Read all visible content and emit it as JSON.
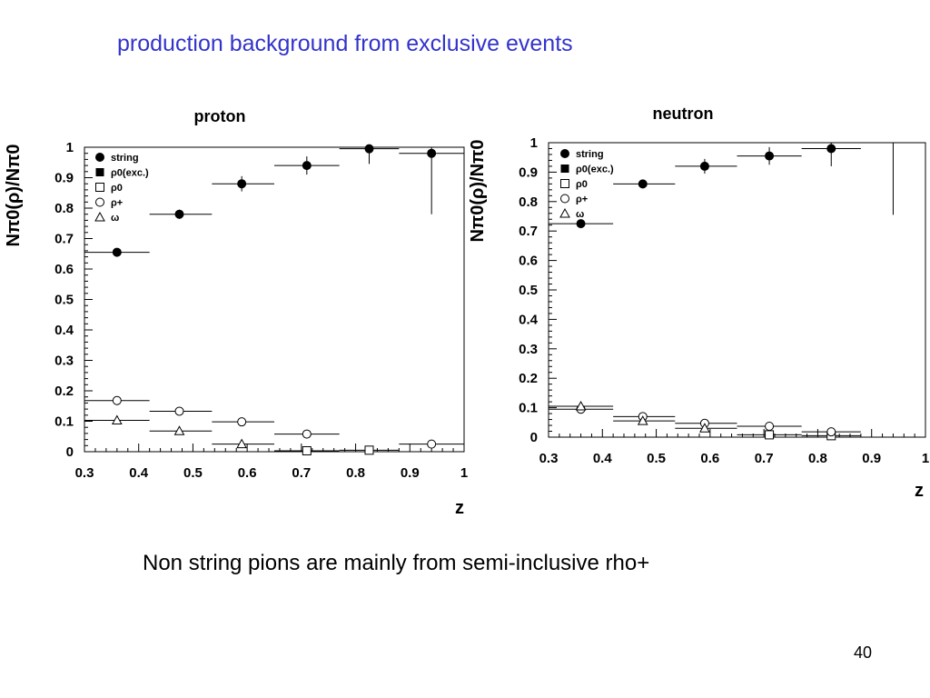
{
  "slide": {
    "title": "production background from exclusive events",
    "caption": "Non string pions are mainly from semi-inclusive rho+",
    "page_number": "40",
    "title_color": "#3333cc"
  },
  "chart_data": [
    {
      "type": "scatter",
      "title": "proton",
      "xlabel": "z",
      "ylabel": "Nπ0(ρ)/Nπ0",
      "xlim": [
        0.3,
        1.0
      ],
      "ylim": [
        0,
        1.0
      ],
      "x_ticks": [
        "0.3",
        "0.4",
        "0.5",
        "0.6",
        "0.7",
        "0.8",
        "0.9",
        "1"
      ],
      "y_ticks": [
        "0",
        "0.1",
        "0.2",
        "0.3",
        "0.4",
        "0.5",
        "0.6",
        "0.7",
        "0.8",
        "0.9",
        "1"
      ],
      "legend_position": "top-left",
      "grid": false,
      "series": [
        {
          "name": "string",
          "marker": "filled-circle",
          "points": [
            {
              "x": 0.36,
              "y": 0.655,
              "xlo": 0.3,
              "xhi": 0.42,
              "ylo": 0.655,
              "yhi": 0.655
            },
            {
              "x": 0.475,
              "y": 0.78,
              "xlo": 0.42,
              "xhi": 0.535,
              "ylo": 0.765,
              "yhi": 0.795
            },
            {
              "x": 0.59,
              "y": 0.88,
              "xlo": 0.535,
              "xhi": 0.65,
              "ylo": 0.855,
              "yhi": 0.905
            },
            {
              "x": 0.71,
              "y": 0.94,
              "xlo": 0.65,
              "xhi": 0.77,
              "ylo": 0.91,
              "yhi": 0.97
            },
            {
              "x": 0.825,
              "y": 0.995,
              "xlo": 0.77,
              "xhi": 0.88,
              "ylo": 0.945,
              "yhi": 1.0
            },
            {
              "x": 0.94,
              "y": 0.98,
              "xlo": 0.88,
              "xhi": 1.0,
              "ylo": 0.78,
              "yhi": 1.0
            }
          ]
        },
        {
          "name": "ρ0(exc.)",
          "marker": "filled-square",
          "points": []
        },
        {
          "name": "ρ0",
          "marker": "open-square",
          "points": [
            {
              "x": 0.71,
              "y": 0.003,
              "xlo": 0.65,
              "xhi": 0.77,
              "ylo": 0.003,
              "yhi": 0.003
            },
            {
              "x": 0.825,
              "y": 0.005,
              "xlo": 0.77,
              "xhi": 0.88,
              "ylo": 0.005,
              "yhi": 0.005
            }
          ]
        },
        {
          "name": "ρ+",
          "marker": "open-circle",
          "points": [
            {
              "x": 0.36,
              "y": 0.168,
              "xlo": 0.3,
              "xhi": 0.42,
              "ylo": 0.168,
              "yhi": 0.168
            },
            {
              "x": 0.475,
              "y": 0.133,
              "xlo": 0.42,
              "xhi": 0.535,
              "ylo": 0.133,
              "yhi": 0.133
            },
            {
              "x": 0.59,
              "y": 0.098,
              "xlo": 0.535,
              "xhi": 0.65,
              "ylo": 0.098,
              "yhi": 0.098
            },
            {
              "x": 0.71,
              "y": 0.058,
              "xlo": 0.65,
              "xhi": 0.77,
              "ylo": 0.058,
              "yhi": 0.058
            },
            {
              "x": 0.94,
              "y": 0.025,
              "xlo": 0.88,
              "xhi": 1.0,
              "ylo": 0.025,
              "yhi": 0.025
            }
          ]
        },
        {
          "name": "ω",
          "marker": "open-triangle",
          "points": [
            {
              "x": 0.36,
              "y": 0.103,
              "xlo": 0.3,
              "xhi": 0.42,
              "ylo": 0.103,
              "yhi": 0.103
            },
            {
              "x": 0.475,
              "y": 0.068,
              "xlo": 0.42,
              "xhi": 0.535,
              "ylo": 0.068,
              "yhi": 0.068
            },
            {
              "x": 0.59,
              "y": 0.025,
              "xlo": 0.535,
              "xhi": 0.65,
              "ylo": 0.025,
              "yhi": 0.025
            }
          ]
        }
      ]
    },
    {
      "type": "scatter",
      "title": "neutron",
      "xlabel": "z",
      "ylabel": "Nπ0(ρ)/Nπ0",
      "xlim": [
        0.3,
        1.0
      ],
      "ylim": [
        0,
        1.0
      ],
      "x_ticks": [
        "0.3",
        "0.4",
        "0.5",
        "0.6",
        "0.7",
        "0.8",
        "0.9",
        "1"
      ],
      "y_ticks": [
        "0",
        "0.1",
        "0.2",
        "0.3",
        "0.4",
        "0.5",
        "0.6",
        "0.7",
        "0.8",
        "0.9",
        "1"
      ],
      "legend_position": "top-left",
      "grid": false,
      "series": [
        {
          "name": "string",
          "marker": "filled-circle",
          "points": [
            {
              "x": 0.36,
              "y": 0.725,
              "xlo": 0.3,
              "xhi": 0.42,
              "ylo": 0.725,
              "yhi": 0.725
            },
            {
              "x": 0.475,
              "y": 0.86,
              "xlo": 0.42,
              "xhi": 0.535,
              "ylo": 0.845,
              "yhi": 0.875
            },
            {
              "x": 0.59,
              "y": 0.92,
              "xlo": 0.535,
              "xhi": 0.65,
              "ylo": 0.895,
              "yhi": 0.945
            },
            {
              "x": 0.71,
              "y": 0.955,
              "xlo": 0.65,
              "xhi": 0.77,
              "ylo": 0.925,
              "yhi": 0.985
            },
            {
              "x": 0.825,
              "y": 0.98,
              "xlo": 0.77,
              "xhi": 0.88,
              "ylo": 0.92,
              "yhi": 1.0
            },
            {
              "x": 0.94,
              "y": 1.0,
              "xlo": 0.88,
              "xhi": 1.0,
              "ylo": 0.755,
              "yhi": 1.0
            }
          ]
        },
        {
          "name": "ρ0(exc.)",
          "marker": "filled-square",
          "points": []
        },
        {
          "name": "ρ0",
          "marker": "open-square",
          "points": [
            {
              "x": 0.71,
              "y": 0.008,
              "xlo": 0.65,
              "xhi": 0.77,
              "ylo": 0.008,
              "yhi": 0.008
            },
            {
              "x": 0.825,
              "y": 0.005,
              "xlo": 0.77,
              "xhi": 0.88,
              "ylo": 0.005,
              "yhi": 0.005
            }
          ]
        },
        {
          "name": "ρ+",
          "marker": "open-circle",
          "points": [
            {
              "x": 0.36,
              "y": 0.095,
              "xlo": 0.3,
              "xhi": 0.42,
              "ylo": 0.095,
              "yhi": 0.095
            },
            {
              "x": 0.475,
              "y": 0.07,
              "xlo": 0.42,
              "xhi": 0.535,
              "ylo": 0.07,
              "yhi": 0.07
            },
            {
              "x": 0.59,
              "y": 0.047,
              "xlo": 0.535,
              "xhi": 0.65,
              "ylo": 0.047,
              "yhi": 0.047
            },
            {
              "x": 0.71,
              "y": 0.037,
              "xlo": 0.65,
              "xhi": 0.77,
              "ylo": 0.037,
              "yhi": 0.037
            },
            {
              "x": 0.825,
              "y": 0.018,
              "xlo": 0.77,
              "xhi": 0.88,
              "ylo": 0.018,
              "yhi": 0.018
            }
          ]
        },
        {
          "name": "ω",
          "marker": "open-triangle",
          "points": [
            {
              "x": 0.36,
              "y": 0.105,
              "xlo": 0.3,
              "xhi": 0.42,
              "ylo": 0.105,
              "yhi": 0.105
            },
            {
              "x": 0.475,
              "y": 0.055,
              "xlo": 0.42,
              "xhi": 0.535,
              "ylo": 0.055,
              "yhi": 0.055
            },
            {
              "x": 0.59,
              "y": 0.03,
              "xlo": 0.535,
              "xhi": 0.65,
              "ylo": 0.03,
              "yhi": 0.03
            }
          ]
        }
      ]
    }
  ]
}
